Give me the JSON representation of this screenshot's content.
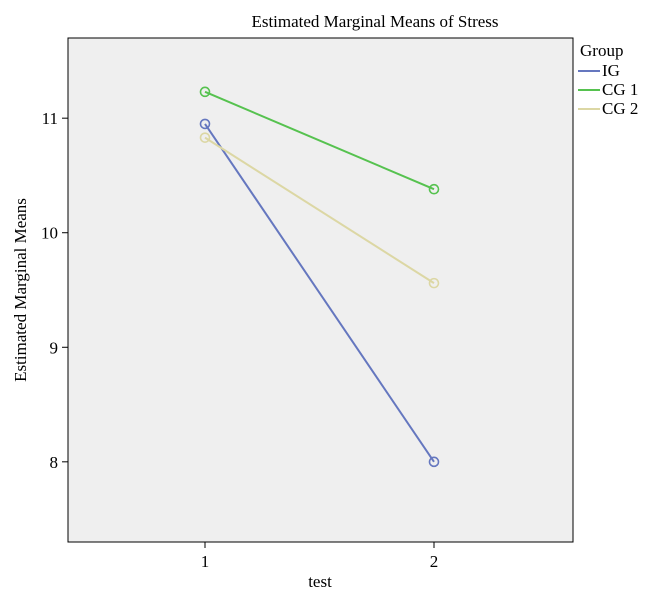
{
  "chart_data": {
    "type": "line",
    "title": "Estimated Marginal Means of Stress",
    "xlabel": "test",
    "ylabel": "Estimated Marginal Means",
    "categories": [
      "1",
      "2"
    ],
    "ylim": [
      7.3,
      11.7
    ],
    "yticks": [
      8,
      9,
      10,
      11
    ],
    "grid": false,
    "legend": {
      "title": "Group",
      "placement": "right"
    },
    "plot_background": "#efefef",
    "series": [
      {
        "name": "IG",
        "color": "#6577bf",
        "values": [
          10.95,
          8.0
        ]
      },
      {
        "name": "CG 1",
        "color": "#56c24f",
        "values": [
          11.23,
          10.38
        ]
      },
      {
        "name": "CG 2",
        "color": "#dcd7a4",
        "values": [
          10.83,
          9.56
        ]
      }
    ]
  }
}
